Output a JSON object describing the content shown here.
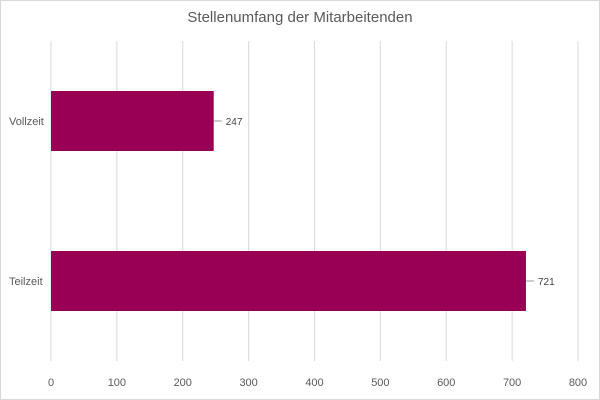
{
  "chart_data": {
    "type": "bar",
    "orientation": "horizontal",
    "title": "Stellenumfang der Mitarbeitenden",
    "categories": [
      "Vollzeit",
      "Teilzeit"
    ],
    "values": [
      247,
      721
    ],
    "data_labels": [
      "247",
      "721"
    ],
    "xlim": [
      0,
      800
    ],
    "x_ticks": [
      "0",
      "100",
      "200",
      "300",
      "400",
      "500",
      "600",
      "700",
      "800"
    ],
    "grid": true,
    "bar_color": "#990055",
    "grid_color": "#d9d9d9"
  }
}
